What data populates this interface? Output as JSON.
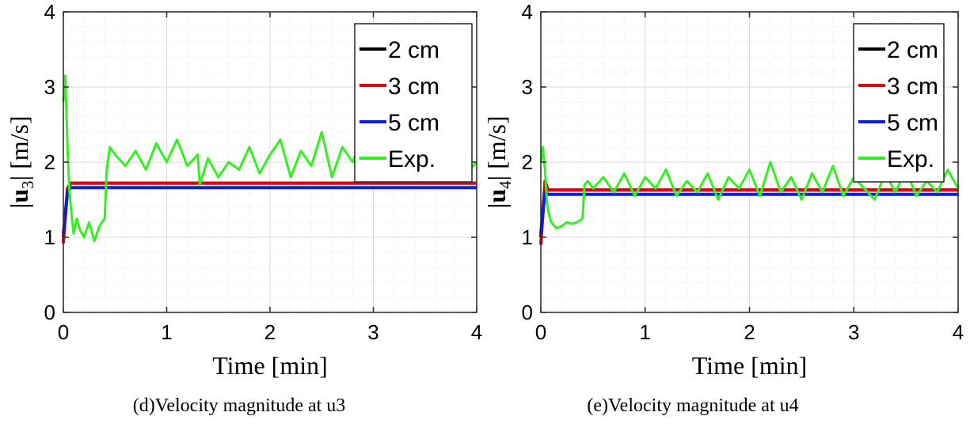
{
  "colors": {
    "two_cm": "#000000",
    "three_cm": "#e8000b",
    "five_cm": "#0a1ee0",
    "exp": "#33f01e",
    "grid": "#d9d9d9"
  },
  "chart_data": [
    {
      "type": "line",
      "caption": "(d)Velocity magnitude at u3",
      "xlabel": "Time [min]",
      "ylabel_main": "|u",
      "ylabel_sub": "3",
      "ylabel_tail": "| [m/s]",
      "xlim": [
        0,
        4
      ],
      "ylim": [
        0,
        4
      ],
      "xticks": [
        "0",
        "1",
        "2",
        "3",
        "4"
      ],
      "yticks": [
        "0",
        "1",
        "2",
        "3",
        "4"
      ],
      "grid": true,
      "legend": "top-right",
      "series": [
        {
          "name": "2 cm",
          "x": [
            0,
            0.04,
            0.07,
            4
          ],
          "y": [
            1.0,
            1.6,
            1.72,
            1.72
          ]
        },
        {
          "name": "3 cm",
          "x": [
            0,
            0.04,
            0.07,
            4
          ],
          "y": [
            0.92,
            1.65,
            1.72,
            1.72
          ]
        },
        {
          "name": "5 cm",
          "x": [
            0,
            0.04,
            0.07,
            4
          ],
          "y": [
            1.05,
            1.6,
            1.66,
            1.66
          ]
        },
        {
          "name": "Exp.",
          "x": [
            0,
            0.02,
            0.04,
            0.06,
            0.08,
            0.1,
            0.13,
            0.16,
            0.2,
            0.25,
            0.3,
            0.35,
            0.4,
            0.42,
            0.45,
            0.5,
            0.6,
            0.7,
            0.8,
            0.9,
            1.0,
            1.1,
            1.2,
            1.3,
            1.32,
            1.4,
            1.5,
            1.6,
            1.7,
            1.8,
            1.9,
            2.0,
            2.1,
            2.2,
            2.3,
            2.4,
            2.5,
            2.6,
            2.7,
            2.8,
            2.9,
            3.0,
            3.1,
            3.2,
            3.3,
            3.4,
            3.5,
            3.6,
            3.7,
            3.8,
            3.9,
            4.0
          ],
          "y": [
            2.8,
            3.15,
            2.2,
            1.6,
            1.3,
            1.05,
            1.25,
            1.1,
            1.0,
            1.2,
            0.95,
            1.15,
            1.25,
            1.9,
            2.2,
            2.1,
            1.95,
            2.15,
            1.9,
            2.25,
            2.0,
            2.3,
            1.95,
            2.1,
            1.7,
            2.05,
            1.8,
            2.0,
            1.9,
            2.2,
            1.85,
            2.1,
            2.3,
            1.8,
            2.15,
            1.95,
            2.4,
            1.8,
            2.2,
            2.0,
            2.35,
            1.9,
            2.2,
            2.4,
            1.85,
            2.1,
            2.0,
            2.3,
            1.9,
            2.2,
            1.85,
            2.0
          ]
        }
      ]
    },
    {
      "type": "line",
      "caption": "(e)Velocity magnitude at u4",
      "xlabel": "Time [min]",
      "ylabel_main": "|u",
      "ylabel_sub": "4",
      "ylabel_tail": "| [m/s]",
      "xlim": [
        0,
        4
      ],
      "ylim": [
        0,
        4
      ],
      "xticks": [
        "0",
        "1",
        "2",
        "3",
        "4"
      ],
      "yticks": [
        "0",
        "1",
        "2",
        "3",
        "4"
      ],
      "grid": true,
      "legend": "top-right",
      "series": [
        {
          "name": "2 cm",
          "x": [
            0,
            0.04,
            0.07,
            4
          ],
          "y": [
            1.0,
            1.7,
            1.63,
            1.63
          ]
        },
        {
          "name": "3 cm",
          "x": [
            0,
            0.04,
            0.07,
            4
          ],
          "y": [
            0.9,
            1.75,
            1.63,
            1.63
          ]
        },
        {
          "name": "5 cm",
          "x": [
            0,
            0.04,
            0.07,
            4
          ],
          "y": [
            1.05,
            1.6,
            1.57,
            1.57
          ]
        },
        {
          "name": "Exp.",
          "x": [
            0,
            0.02,
            0.04,
            0.06,
            0.08,
            0.1,
            0.15,
            0.2,
            0.25,
            0.3,
            0.35,
            0.4,
            0.42,
            0.45,
            0.5,
            0.6,
            0.7,
            0.8,
            0.9,
            1.0,
            1.1,
            1.2,
            1.3,
            1.4,
            1.5,
            1.6,
            1.7,
            1.8,
            1.9,
            2.0,
            2.1,
            2.2,
            2.3,
            2.4,
            2.5,
            2.6,
            2.7,
            2.8,
            2.9,
            3.0,
            3.1,
            3.2,
            3.3,
            3.4,
            3.5,
            3.6,
            3.7,
            3.8,
            3.9,
            4.0
          ],
          "y": [
            2.0,
            2.2,
            1.9,
            1.45,
            1.3,
            1.2,
            1.12,
            1.15,
            1.2,
            1.18,
            1.2,
            1.25,
            1.7,
            1.75,
            1.65,
            1.8,
            1.6,
            1.85,
            1.55,
            1.8,
            1.65,
            1.9,
            1.55,
            1.75,
            1.6,
            1.85,
            1.5,
            1.8,
            1.65,
            1.9,
            1.55,
            2.0,
            1.6,
            1.8,
            1.5,
            1.85,
            1.6,
            1.95,
            1.55,
            1.8,
            1.65,
            1.5,
            1.85,
            1.6,
            1.9,
            1.55,
            1.75,
            1.6,
            1.9,
            1.65
          ]
        }
      ]
    }
  ]
}
